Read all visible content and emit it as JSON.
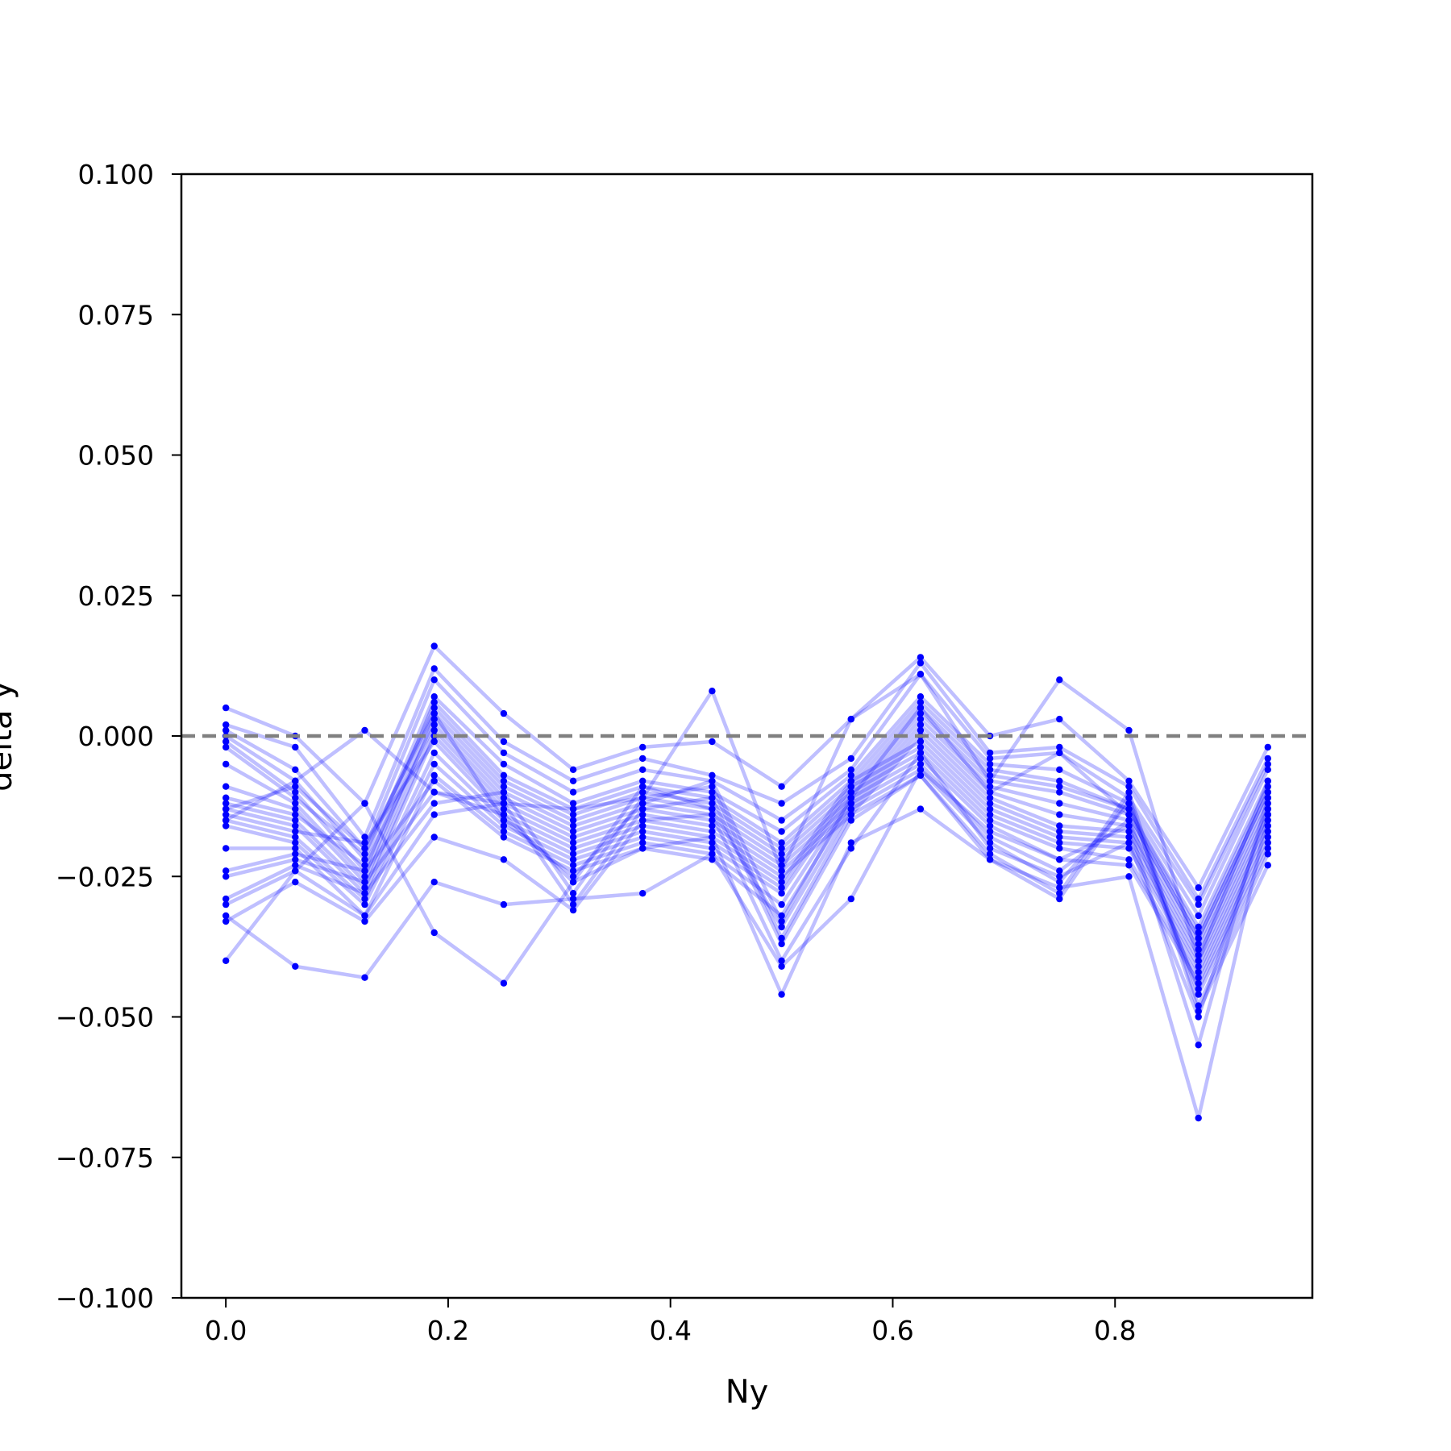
{
  "chart_data": {
    "type": "line",
    "title": "",
    "xlabel": "Ny",
    "ylabel": "delta y",
    "xlim": [
      -0.04,
      0.9775
    ],
    "ylim": [
      -0.1,
      0.1
    ],
    "x": [
      0.0,
      0.0625,
      0.125,
      0.1875,
      0.25,
      0.3125,
      0.375,
      0.4375,
      0.5,
      0.5625,
      0.625,
      0.6875,
      0.75,
      0.8125,
      0.875,
      0.9375
    ],
    "x_ticks": [
      0.0,
      0.2,
      0.4,
      0.6,
      0.8
    ],
    "x_tick_labels": [
      "0.0",
      "0.2",
      "0.4",
      "0.6",
      "0.8"
    ],
    "y_ticks": [
      0.1,
      0.075,
      0.05,
      0.025,
      0.0,
      -0.025,
      -0.05,
      -0.075,
      -0.1
    ],
    "y_tick_labels": [
      "0.100",
      "0.075",
      "0.050",
      "0.025",
      "0.000",
      "−0.025",
      "−0.050",
      "−0.075",
      "−0.100"
    ],
    "reference_line": {
      "y": 0.0,
      "style": "dashed",
      "color": "#808080"
    },
    "grid": false,
    "legend": "none",
    "line_color": "#0000ff",
    "line_opacity": 0.25,
    "marker_color": "#0000ff",
    "series": [
      {
        "values": [
          0.005,
          0.0,
          -0.012,
          0.016,
          0.004,
          -0.006,
          -0.002,
          -0.001,
          -0.009,
          0.003,
          0.014,
          0.0,
          0.003,
          -0.008,
          -0.027,
          -0.002
        ]
      },
      {
        "values": [
          0.002,
          -0.002,
          -0.018,
          0.012,
          -0.001,
          -0.008,
          -0.004,
          -0.007,
          -0.012,
          -0.004,
          0.013,
          -0.003,
          -0.002,
          -0.009,
          -0.029,
          -0.004
        ]
      },
      {
        "values": [
          0.001,
          -0.006,
          -0.02,
          0.01,
          -0.003,
          -0.01,
          -0.006,
          -0.008,
          -0.015,
          -0.006,
          0.011,
          -0.004,
          -0.003,
          -0.011,
          -0.03,
          -0.005
        ]
      },
      {
        "values": [
          0.0,
          -0.008,
          -0.022,
          0.007,
          -0.005,
          -0.012,
          -0.008,
          -0.01,
          -0.017,
          -0.007,
          0.007,
          -0.005,
          -0.006,
          -0.012,
          -0.032,
          -0.006
        ]
      },
      {
        "values": [
          -0.001,
          -0.01,
          -0.024,
          0.006,
          -0.007,
          -0.013,
          -0.009,
          -0.011,
          -0.019,
          -0.008,
          0.006,
          -0.006,
          -0.008,
          -0.013,
          -0.034,
          -0.008
        ]
      },
      {
        "values": [
          -0.002,
          -0.011,
          -0.021,
          0.005,
          -0.008,
          -0.014,
          -0.01,
          -0.012,
          -0.02,
          -0.009,
          0.005,
          -0.007,
          -0.009,
          -0.013,
          -0.035,
          -0.009
        ]
      },
      {
        "values": [
          -0.005,
          -0.012,
          -0.025,
          0.004,
          -0.009,
          -0.015,
          -0.011,
          -0.013,
          -0.021,
          -0.01,
          0.004,
          -0.008,
          -0.01,
          -0.014,
          -0.036,
          -0.01
        ]
      },
      {
        "values": [
          -0.009,
          -0.013,
          -0.026,
          0.003,
          -0.01,
          -0.016,
          -0.012,
          -0.014,
          -0.022,
          -0.011,
          0.003,
          -0.009,
          -0.012,
          -0.015,
          -0.037,
          -0.011
        ]
      },
      {
        "values": [
          -0.011,
          -0.014,
          -0.023,
          0.002,
          -0.011,
          -0.017,
          -0.013,
          -0.015,
          -0.023,
          -0.012,
          0.002,
          -0.01,
          -0.014,
          -0.016,
          -0.038,
          -0.012
        ]
      },
      {
        "values": [
          -0.012,
          -0.015,
          -0.027,
          0.001,
          -0.012,
          -0.018,
          -0.014,
          -0.016,
          -0.024,
          -0.013,
          0.001,
          -0.011,
          -0.016,
          -0.017,
          -0.039,
          -0.013
        ]
      },
      {
        "values": [
          -0.013,
          -0.016,
          -0.028,
          0.0,
          -0.013,
          -0.019,
          -0.015,
          -0.017,
          -0.025,
          -0.014,
          0.0,
          -0.012,
          -0.017,
          -0.018,
          -0.04,
          -0.014
        ]
      },
      {
        "values": [
          -0.014,
          -0.017,
          -0.019,
          -0.001,
          -0.014,
          -0.02,
          -0.016,
          -0.018,
          -0.026,
          -0.008,
          -0.001,
          -0.013,
          -0.018,
          -0.019,
          -0.041,
          -0.015
        ]
      },
      {
        "values": [
          -0.015,
          -0.018,
          -0.029,
          -0.003,
          -0.015,
          -0.021,
          -0.017,
          -0.019,
          -0.027,
          -0.009,
          -0.002,
          -0.014,
          -0.019,
          -0.02,
          -0.042,
          -0.016
        ]
      },
      {
        "values": [
          -0.016,
          -0.019,
          -0.03,
          -0.005,
          -0.016,
          -0.022,
          -0.018,
          -0.02,
          -0.028,
          -0.01,
          -0.003,
          -0.015,
          -0.02,
          -0.022,
          -0.043,
          -0.017
        ]
      },
      {
        "values": [
          -0.02,
          -0.02,
          -0.032,
          -0.007,
          -0.017,
          -0.023,
          -0.019,
          -0.021,
          -0.03,
          -0.011,
          -0.004,
          -0.016,
          -0.022,
          -0.023,
          -0.044,
          -0.018
        ]
      },
      {
        "values": [
          -0.024,
          -0.021,
          -0.024,
          -0.008,
          -0.018,
          -0.024,
          -0.02,
          -0.022,
          -0.032,
          -0.012,
          -0.005,
          -0.018,
          -0.024,
          -0.015,
          -0.045,
          -0.019
        ]
      },
      {
        "values": [
          -0.025,
          -0.022,
          -0.026,
          -0.01,
          -0.014,
          -0.026,
          -0.009,
          -0.013,
          -0.034,
          -0.013,
          -0.006,
          -0.019,
          -0.026,
          -0.012,
          -0.046,
          -0.02
        ]
      },
      {
        "values": [
          -0.029,
          -0.023,
          -0.028,
          -0.012,
          -0.01,
          -0.028,
          -0.011,
          -0.009,
          -0.036,
          -0.014,
          -0.007,
          -0.021,
          -0.028,
          -0.01,
          -0.048,
          -0.021
        ]
      },
      {
        "values": [
          -0.03,
          -0.024,
          -0.032,
          -0.014,
          -0.012,
          -0.03,
          -0.013,
          -0.011,
          -0.037,
          -0.015,
          -0.007,
          -0.022,
          -0.029,
          -0.011,
          -0.049,
          -0.023
        ]
      },
      {
        "values": [
          -0.033,
          -0.026,
          -0.033,
          -0.018,
          -0.022,
          -0.031,
          -0.015,
          -0.014,
          -0.04,
          -0.02,
          -0.003,
          -0.02,
          -0.025,
          -0.019,
          -0.05,
          -0.013
        ]
      },
      {
        "values": [
          -0.032,
          -0.041,
          -0.043,
          -0.026,
          -0.03,
          -0.029,
          -0.028,
          -0.021,
          -0.041,
          -0.029,
          -0.006,
          -0.017,
          -0.022,
          -0.016,
          -0.055,
          -0.011
        ]
      },
      {
        "values": [
          -0.04,
          -0.024,
          -0.012,
          -0.035,
          -0.044,
          -0.026,
          -0.02,
          -0.018,
          -0.046,
          -0.019,
          -0.013,
          -0.022,
          -0.027,
          -0.025,
          -0.068,
          -0.014
        ]
      },
      {
        "values": [
          -0.015,
          -0.008,
          0.001,
          -0.01,
          -0.012,
          -0.013,
          -0.011,
          0.008,
          -0.024,
          0.003,
          0.011,
          -0.008,
          0.01,
          0.001,
          -0.04,
          -0.008
        ]
      },
      {
        "values": [
          -0.013,
          -0.009,
          -0.02,
          0.004,
          -0.015,
          -0.025,
          -0.012,
          -0.008,
          -0.033,
          -0.011,
          0.005,
          -0.01,
          -0.003,
          -0.014,
          -0.036,
          -0.01
        ]
      }
    ]
  }
}
